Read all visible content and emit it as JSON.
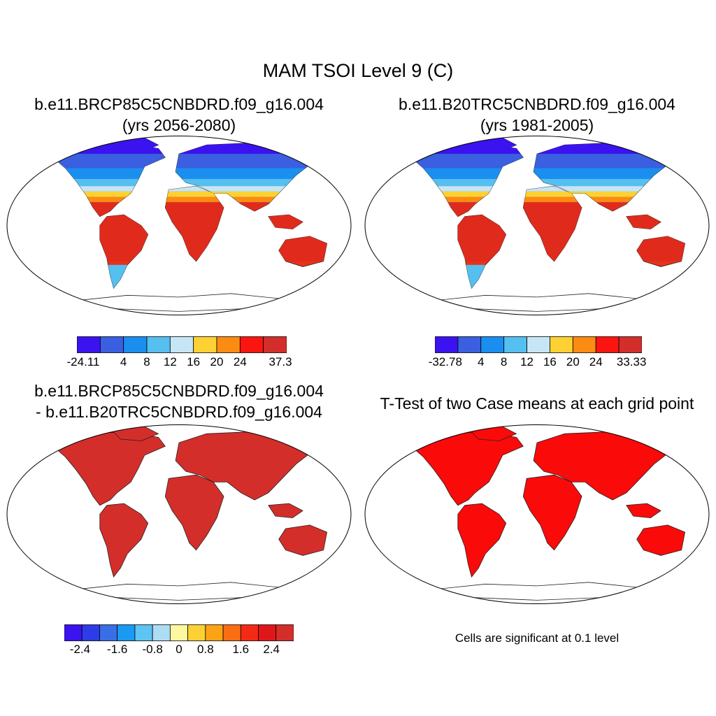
{
  "main_title": "MAM TSOI Level 9 (C)",
  "panels": {
    "top_left": {
      "title_line1": "b.e11.BRCP85C5CNBDRD.f09_g16.004",
      "title_line2": "(yrs 2056-2080)",
      "colorbar": {
        "colors": [
          "#3b13f0",
          "#3a5fe0",
          "#1a8ff0",
          "#55bff0",
          "#c6e6f5",
          "#fdd133",
          "#fb8b13",
          "#fb1511",
          "#d42e2b"
        ],
        "labels": [
          "-24.11",
          "4",
          "8",
          "12",
          "16",
          "20",
          "24",
          "37.3"
        ]
      }
    },
    "top_right": {
      "title_line1": "b.e11.B20TRC5CNBDRD.f09_g16.004",
      "title_line2": "(yrs 1981-2005)",
      "colorbar": {
        "colors": [
          "#3b13f0",
          "#3a5fe0",
          "#1a8ff0",
          "#55bff0",
          "#c6e6f5",
          "#fdd133",
          "#fb8b13",
          "#fb1511",
          "#d42e2b"
        ],
        "labels": [
          "-32.78",
          "4",
          "8",
          "12",
          "16",
          "20",
          "24",
          "33.33"
        ]
      }
    },
    "bottom_left": {
      "title_line1": "b.e11.BRCP85C5CNBDRD.f09_g16.004",
      "title_line2": "- b.e11.B20TRC5CNBDRD.f09_g16.004",
      "colorbar": {
        "colors": [
          "#3b13f0",
          "#2e3ce8",
          "#3a6ee6",
          "#1a9af2",
          "#5ec4f4",
          "#aedcf2",
          "#fdf7a0",
          "#fdd133",
          "#fca315",
          "#fb6d13",
          "#f52a14",
          "#e0171a",
          "#d42e2b"
        ],
        "labels": [
          "-2.4",
          "-1.6",
          "-0.8",
          "0",
          "0.8",
          "1.6",
          "2.4"
        ]
      }
    },
    "bottom_right": {
      "title_line1": "T-Test of two Case means at each grid point",
      "note": "Cells are significant at 0.1 level"
    }
  }
}
